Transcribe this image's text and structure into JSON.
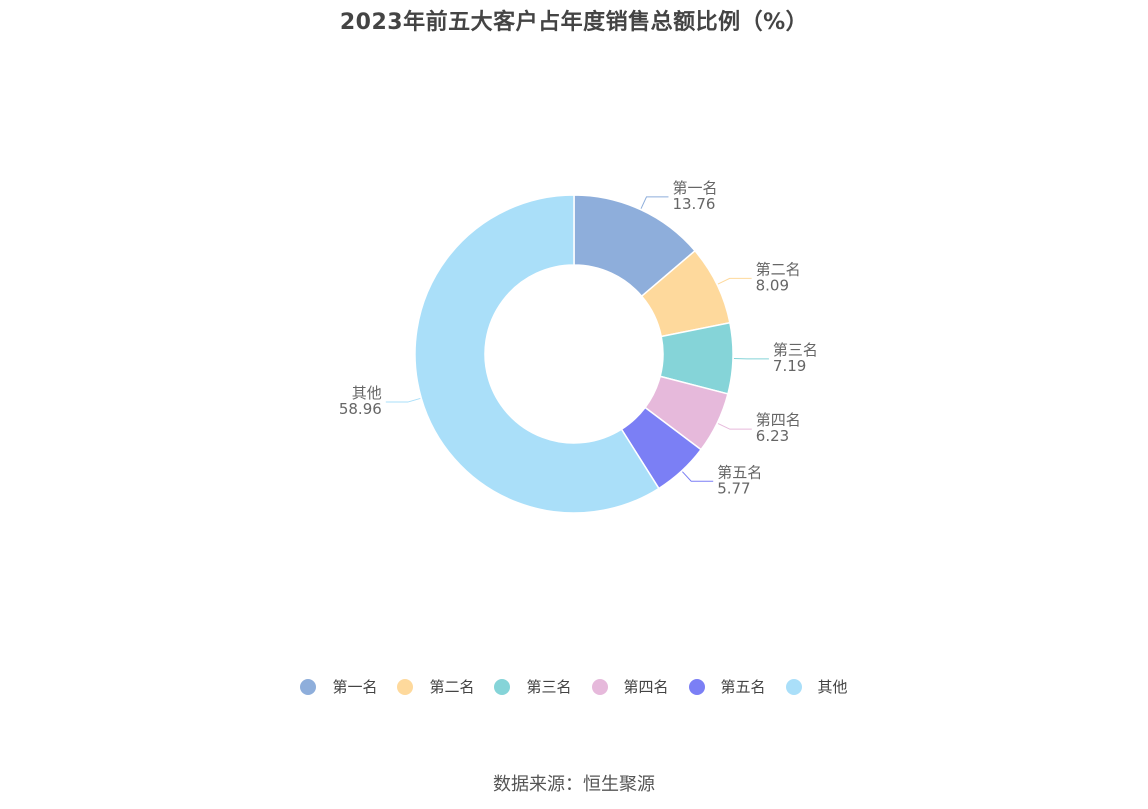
{
  "title": "2023年前五大客户占年度销售总额比例（%）",
  "source": "数据来源：恒生聚源",
  "chart_data": {
    "type": "pie",
    "subtype": "donut",
    "title": "2023年前五大客户占年度销售总额比例（%）",
    "legend_position": "bottom",
    "categories": [
      "第一名",
      "第二名",
      "第三名",
      "第四名",
      "第五名",
      "其他"
    ],
    "values": [
      13.76,
      8.09,
      7.19,
      6.23,
      5.77,
      58.96
    ],
    "value_labels": [
      "13.76",
      "8.09",
      "7.19",
      "6.23",
      "5.77",
      "58.96"
    ],
    "colors": [
      "#8eaedb",
      "#fed99c",
      "#85d4d8",
      "#e6b9db",
      "#7b7ff5",
      "#aadff9"
    ]
  }
}
